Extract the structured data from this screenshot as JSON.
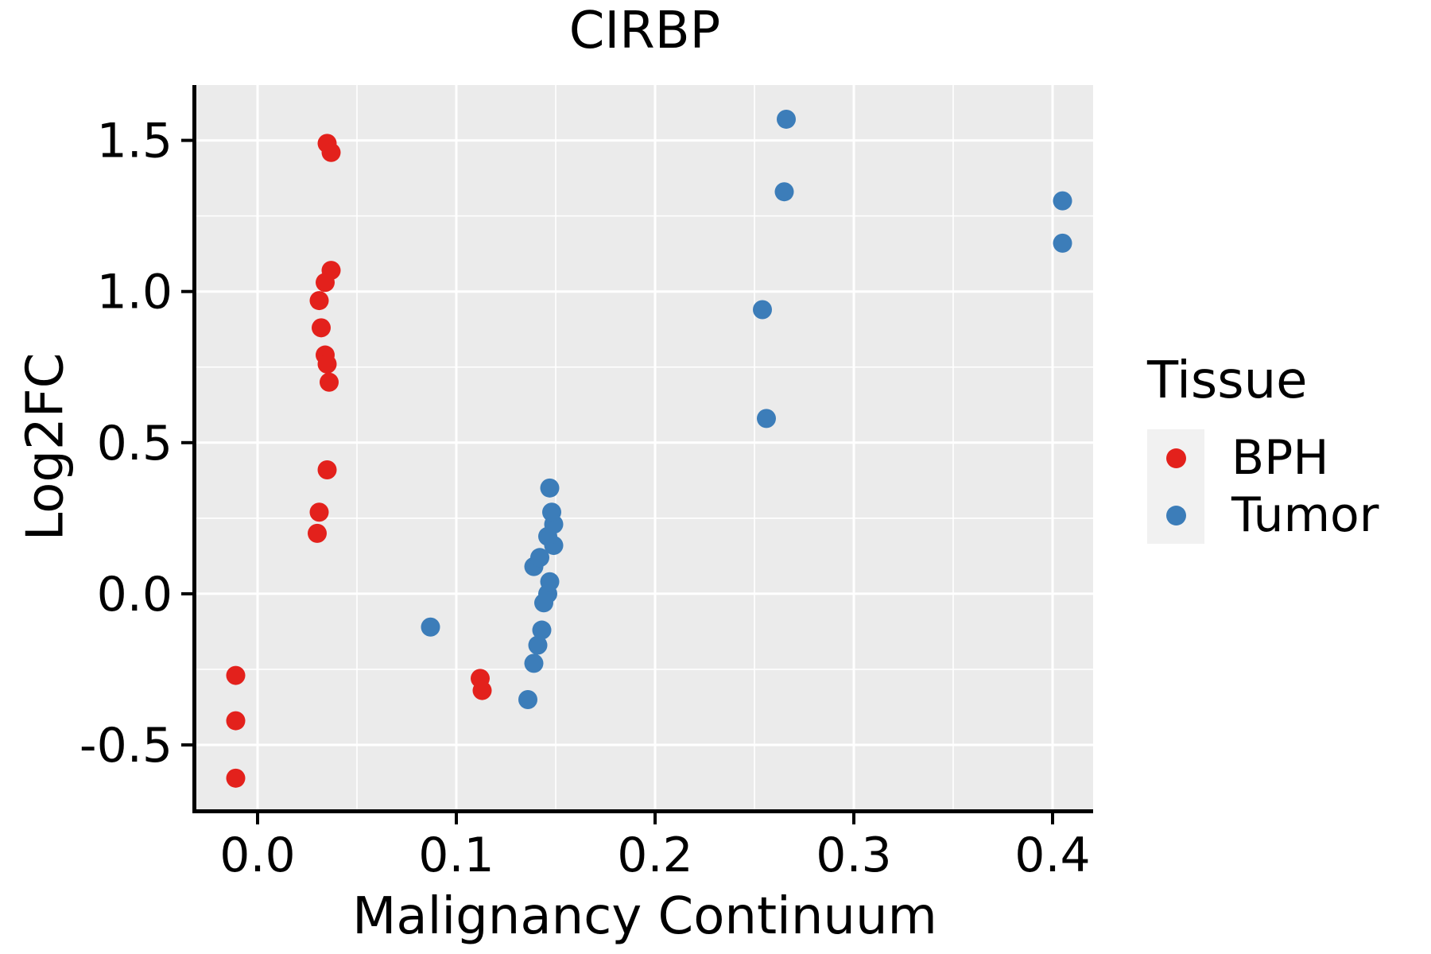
{
  "title": "CIRBP",
  "x_axis": {
    "label": "Malignancy Continuum",
    "tick_labels": [
      "0.0",
      "0.1",
      "0.2",
      "0.3",
      "0.4"
    ],
    "tick_values": [
      0.0,
      0.1,
      0.2,
      0.3,
      0.4
    ],
    "minor_tick_values": [
      0.05,
      0.15,
      0.25,
      0.35
    ],
    "range": [
      -0.0308,
      0.4204
    ]
  },
  "y_axis": {
    "label": "Log2FC",
    "tick_labels": [
      "-0.5",
      "0.0",
      "0.5",
      "1.0",
      "1.5"
    ],
    "tick_values": [
      -0.5,
      0.0,
      0.5,
      1.0,
      1.5
    ],
    "minor_tick_values": [
      -0.25,
      0.25,
      0.75,
      1.25
    ],
    "range": [
      -0.713,
      1.683
    ]
  },
  "legend": {
    "title": "Tissue",
    "entries": [
      {
        "label": "BPH",
        "color": "#E3211C"
      },
      {
        "label": "Tumor",
        "color": "#3C7DB9"
      }
    ]
  },
  "colors": {
    "panel_background": "#EBEBEB",
    "gridline": "#FFFFFF",
    "axis_line": "#000000",
    "legend_key_background": "#F1F1F1",
    "bph": "#E3211C",
    "tumor": "#3C7DB9"
  },
  "chart_data": {
    "type": "scatter",
    "title": "CIRBP",
    "xlabel": "Malignancy Continuum",
    "ylabel": "Log2FC",
    "xlim": [
      -0.0308,
      0.4204
    ],
    "ylim": [
      -0.713,
      1.683
    ],
    "grid": true,
    "legend_title": "Tissue",
    "legend_position": "right",
    "point_radius_px": 12,
    "series": [
      {
        "name": "BPH",
        "color": "#E3211C",
        "points": [
          [
            0.035,
            1.49
          ],
          [
            0.037,
            1.46
          ],
          [
            0.037,
            1.07
          ],
          [
            0.034,
            1.03
          ],
          [
            0.031,
            0.97
          ],
          [
            0.032,
            0.88
          ],
          [
            0.034,
            0.79
          ],
          [
            0.035,
            0.76
          ],
          [
            0.036,
            0.7
          ],
          [
            0.035,
            0.41
          ],
          [
            0.031,
            0.27
          ],
          [
            0.03,
            0.2
          ],
          [
            0.112,
            -0.28
          ],
          [
            0.113,
            -0.32
          ],
          [
            -0.011,
            -0.27
          ],
          [
            -0.011,
            -0.42
          ],
          [
            -0.011,
            -0.61
          ]
        ]
      },
      {
        "name": "Tumor",
        "color": "#3C7DB9",
        "points": [
          [
            0.087,
            -0.11
          ],
          [
            0.136,
            -0.35
          ],
          [
            0.139,
            -0.23
          ],
          [
            0.141,
            -0.17
          ],
          [
            0.143,
            -0.12
          ],
          [
            0.144,
            -0.03
          ],
          [
            0.146,
            0.0
          ],
          [
            0.147,
            0.04
          ],
          [
            0.139,
            0.09
          ],
          [
            0.142,
            0.12
          ],
          [
            0.149,
            0.16
          ],
          [
            0.146,
            0.19
          ],
          [
            0.149,
            0.23
          ],
          [
            0.148,
            0.27
          ],
          [
            0.147,
            0.35
          ],
          [
            0.254,
            0.94
          ],
          [
            0.256,
            0.58
          ],
          [
            0.265,
            1.33
          ],
          [
            0.266,
            1.57
          ],
          [
            0.405,
            1.3
          ],
          [
            0.405,
            1.16
          ]
        ]
      }
    ]
  }
}
